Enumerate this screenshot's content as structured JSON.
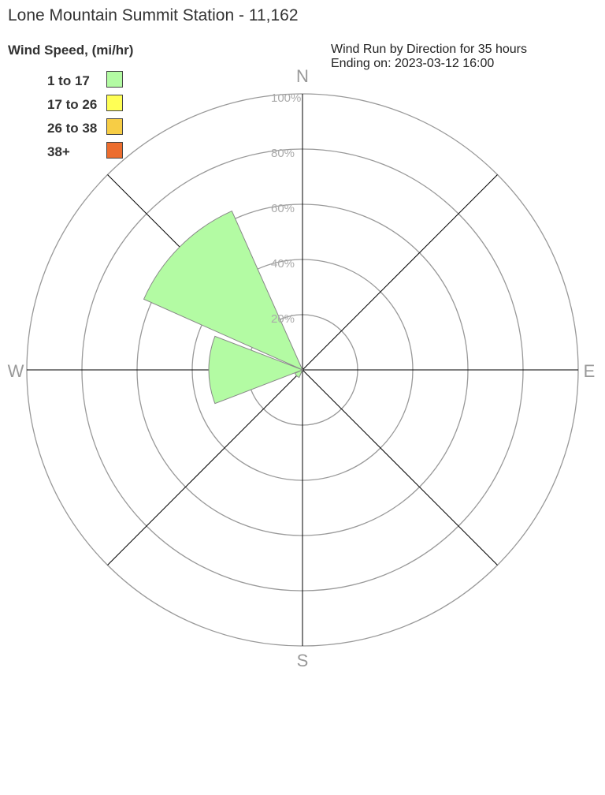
{
  "title": "Lone Mountain Summit Station - 11,162",
  "subtitle_line1": "Wind Run by Direction for 35 hours",
  "subtitle_line2": "Ending on: 2023-03-12 16:00",
  "chart_data": {
    "type": "wind-rose",
    "legend_title": "Wind Speed, (mi/hr)",
    "legend_placement": "top-left",
    "speed_bins": [
      {
        "label": "1 to 17",
        "color": "#b3fba3"
      },
      {
        "label": "17 to 26",
        "color": "#ffff55"
      },
      {
        "label": "26 to 38",
        "color": "#f7cd45"
      },
      {
        "label": "38+",
        "color": "#ec6d2e"
      }
    ],
    "directions": [
      "N",
      "NE",
      "E",
      "SE",
      "S",
      "SW",
      "W",
      "NW"
    ],
    "compass_labels": [
      "N",
      "E",
      "S",
      "W"
    ],
    "radial_ticks": [
      "20%",
      "40%",
      "60%",
      "80%",
      "100%"
    ],
    "radial_range": [
      0,
      100
    ],
    "series": [
      {
        "name": "1 to 17",
        "values": [
          0,
          0,
          0,
          0,
          0,
          3,
          34,
          63
        ]
      },
      {
        "name": "17 to 26",
        "values": [
          0,
          0,
          0,
          0,
          0,
          0,
          0,
          0
        ]
      },
      {
        "name": "26 to 38",
        "values": [
          0,
          0,
          0,
          0,
          0,
          0,
          0,
          0
        ]
      },
      {
        "name": "38+",
        "values": [
          0,
          0,
          0,
          0,
          0,
          0,
          0,
          0
        ]
      }
    ]
  }
}
